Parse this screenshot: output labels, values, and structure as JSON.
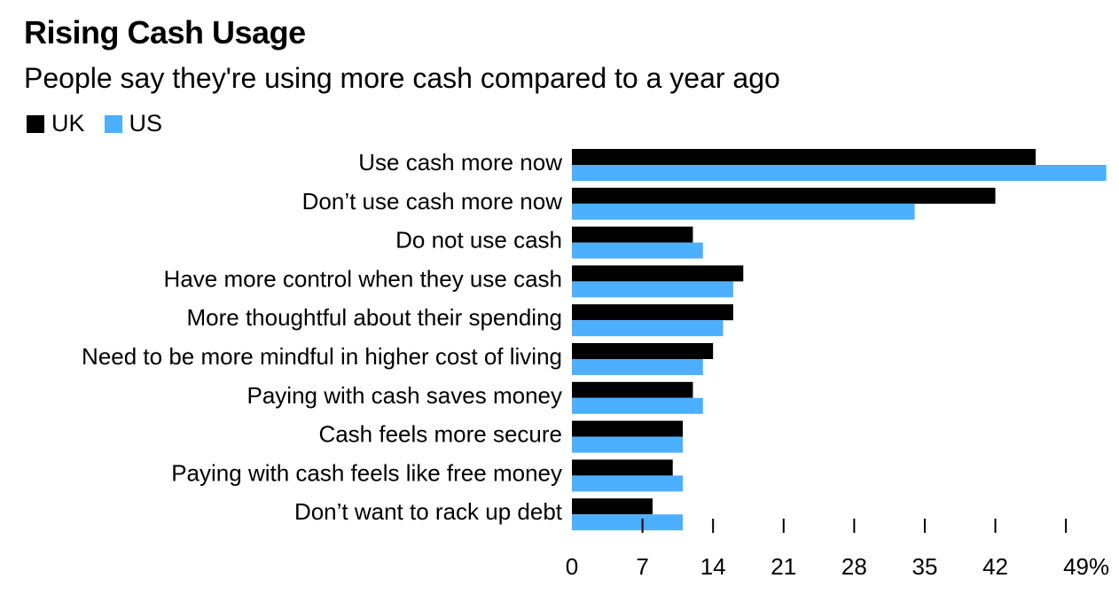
{
  "chart_data": {
    "type": "bar",
    "orientation": "horizontal",
    "title": "Rising Cash Usage",
    "subtitle": "People say they're using more cash compared to a year ago",
    "legend_position": "top-left",
    "categories": [
      "Use cash more now",
      "Don’t use cash more now",
      "Do not use cash",
      "Have more control when they use cash",
      "More thoughtful about their spending",
      "Need to be more mindful in higher cost of living",
      "Paying with cash saves money",
      "Cash feels more secure",
      "Paying with cash feels like free money",
      "Don’t want to rack up debt"
    ],
    "series": [
      {
        "name": "UK",
        "color": "#000000",
        "values": [
          46,
          42,
          12,
          17,
          16,
          14,
          12,
          11,
          10,
          8
        ]
      },
      {
        "name": "US",
        "color": "#4DAFFF",
        "values": [
          53,
          34,
          13,
          16,
          15,
          13,
          13,
          11,
          11,
          11
        ]
      }
    ],
    "xlim": [
      0,
      53
    ],
    "xticks": [
      0,
      7,
      14,
      21,
      28,
      35,
      42,
      49
    ],
    "xtick_labels": [
      "0",
      "7",
      "14",
      "21",
      "28",
      "35",
      "42",
      "49%"
    ],
    "grid": false
  }
}
